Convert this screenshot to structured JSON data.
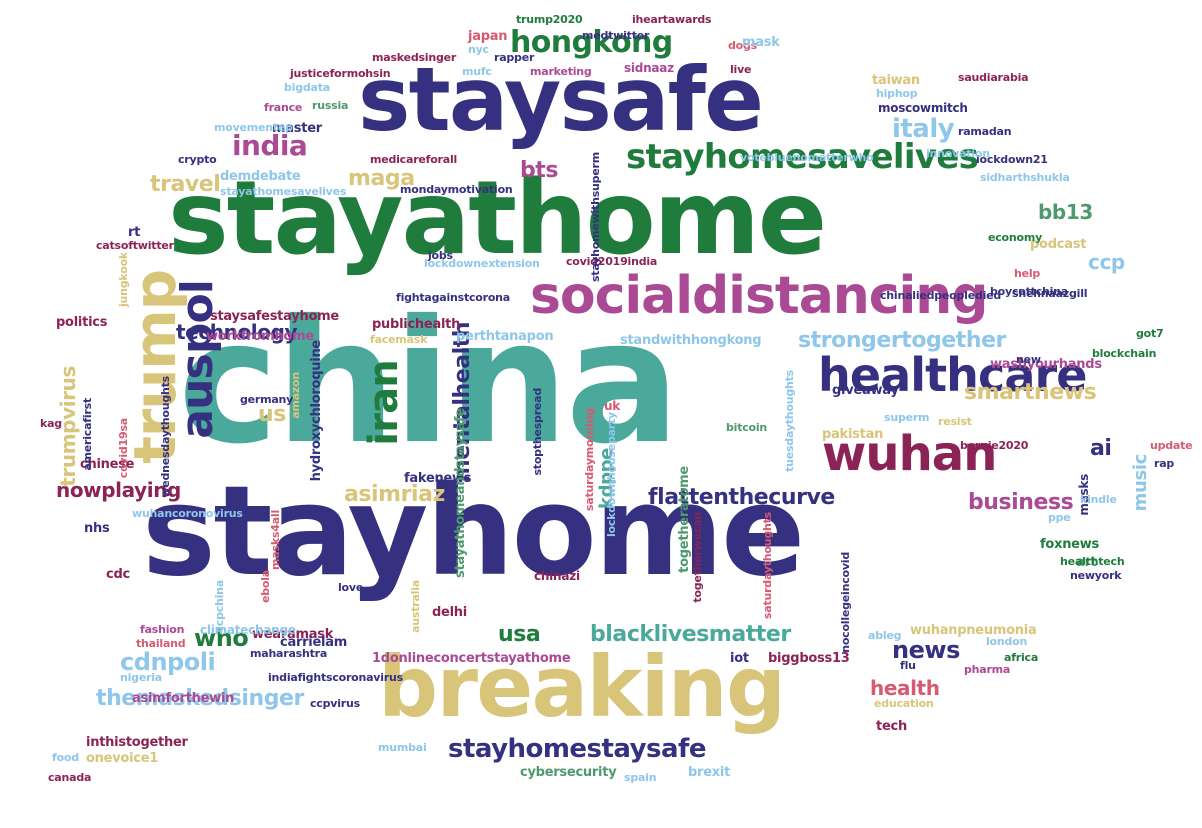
{
  "colors": {
    "navy": "#35307f",
    "green": "#1f7c3d",
    "teal": "#4aa99b",
    "magenta": "#aa4a95",
    "maroon": "#8b2356",
    "tan": "#d8c57a",
    "skyblue": "#8ec7ea",
    "pink": "#d65a72",
    "sage": "#4e9a6e",
    "blue": "#3a6dc6"
  },
  "words": [
    {
      "t": "china",
      "c": "teal"
    },
    {
      "t": "stayhome",
      "c": "navy"
    },
    {
      "t": "stayathome",
      "c": "green"
    },
    {
      "t": "staysafe",
      "c": "navy"
    },
    {
      "t": "breaking",
      "c": "tan"
    },
    {
      "t": "socialdistancing",
      "c": "magenta"
    },
    {
      "t": "healthcare",
      "c": "navy"
    },
    {
      "t": "wuhan",
      "c": "maroon"
    },
    {
      "t": "stayhomesavelives",
      "c": "green"
    },
    {
      "t": "hongkong",
      "c": "green"
    },
    {
      "t": "trump",
      "c": "tan"
    },
    {
      "t": "auspol",
      "c": "navy"
    },
    {
      "t": "iran",
      "c": "green"
    },
    {
      "t": "india",
      "c": "magenta"
    },
    {
      "t": "italy",
      "c": "skyblue"
    },
    {
      "t": "bts",
      "c": "magenta"
    },
    {
      "t": "maga",
      "c": "tan"
    },
    {
      "t": "travel",
      "c": "tan"
    },
    {
      "t": "bb13",
      "c": "sage"
    },
    {
      "t": "ccp",
      "c": "skyblue"
    },
    {
      "t": "technology",
      "c": "navy"
    },
    {
      "t": "strongertogether",
      "c": "skyblue"
    },
    {
      "t": "smartnews",
      "c": "tan"
    },
    {
      "t": "us",
      "c": "tan"
    },
    {
      "t": "ai",
      "c": "navy"
    },
    {
      "t": "nowplaying",
      "c": "maroon"
    },
    {
      "t": "flattenthecurve",
      "c": "navy"
    },
    {
      "t": "business",
      "c": "magenta"
    },
    {
      "t": "asimriaz",
      "c": "tan"
    },
    {
      "t": "mentalhealth",
      "c": "navy"
    },
    {
      "t": "kdppe",
      "c": "teal"
    },
    {
      "t": "who",
      "c": "green"
    },
    {
      "t": "usa",
      "c": "green"
    },
    {
      "t": "blacklivesmatter",
      "c": "teal"
    },
    {
      "t": "news",
      "c": "navy"
    },
    {
      "t": "cdnpoli",
      "c": "skyblue"
    },
    {
      "t": "themaskedsinger",
      "c": "skyblue"
    },
    {
      "t": "health",
      "c": "pink"
    },
    {
      "t": "stayhomestaysafe",
      "c": "navy"
    },
    {
      "t": "trumpvirus",
      "c": "tan"
    },
    {
      "t": "music",
      "c": "skyblue"
    },
    {
      "t": "1donlineconcertstayathome",
      "c": "magenta"
    },
    {
      "t": "workfromhome",
      "c": "magenta"
    },
    {
      "t": "staysafestayhome",
      "c": "maroon"
    },
    {
      "t": "hydroxychloroquine",
      "c": "navy"
    },
    {
      "t": "publichealth",
      "c": "maroon"
    },
    {
      "t": "perthtanapon",
      "c": "skyblue"
    },
    {
      "t": "giveaway",
      "c": "navy"
    },
    {
      "t": "washyourhands",
      "c": "magenta"
    },
    {
      "t": "pakistan",
      "c": "tan"
    },
    {
      "t": "fakenews",
      "c": "navy"
    },
    {
      "t": "politics",
      "c": "maroon"
    },
    {
      "t": "chinese",
      "c": "maroon"
    },
    {
      "t": "nhs",
      "c": "navy"
    },
    {
      "t": "cdc",
      "c": "maroon"
    },
    {
      "t": "wearamask",
      "c": "maroon"
    },
    {
      "t": "carrielam",
      "c": "navy"
    },
    {
      "t": "climatechange",
      "c": "skyblue"
    },
    {
      "t": "biggboss13",
      "c": "maroon"
    },
    {
      "t": "iot",
      "c": "navy"
    },
    {
      "t": "wuhanpneumonia",
      "c": "tan"
    },
    {
      "t": "ableg",
      "c": "skyblue"
    },
    {
      "t": "asimforthewin",
      "c": "magenta"
    },
    {
      "t": "inthistogether",
      "c": "maroon"
    },
    {
      "t": "onevoice1",
      "c": "tan"
    },
    {
      "t": "cybersecurity",
      "c": "sage"
    },
    {
      "t": "brexit",
      "c": "skyblue"
    },
    {
      "t": "tech",
      "c": "maroon"
    },
    {
      "t": "mumbai",
      "c": "skyblue"
    },
    {
      "t": "delhi",
      "c": "maroon"
    },
    {
      "t": "masks",
      "c": "navy"
    },
    {
      "t": "pharma",
      "c": "magenta"
    },
    {
      "t": "london",
      "c": "skyblue"
    },
    {
      "t": "africa",
      "c": "green"
    },
    {
      "t": "foxnews",
      "c": "green"
    },
    {
      "t": "art",
      "c": "sage"
    },
    {
      "t": "newyork",
      "c": "navy"
    },
    {
      "t": "kindle",
      "c": "skyblue"
    },
    {
      "t": "ppe",
      "c": "skyblue"
    },
    {
      "t": "rap",
      "c": "navy"
    },
    {
      "t": "update",
      "c": "pink"
    },
    {
      "t": "bernie2020",
      "c": "maroon"
    },
    {
      "t": "resist",
      "c": "tan"
    },
    {
      "t": "superm",
      "c": "skyblue"
    },
    {
      "t": "bitcoin",
      "c": "sage"
    },
    {
      "t": "blockchain",
      "c": "green"
    },
    {
      "t": "got7",
      "c": "green"
    },
    {
      "t": "new",
      "c": "navy"
    },
    {
      "t": "uk",
      "c": "pink"
    },
    {
      "t": "podcast",
      "c": "tan"
    },
    {
      "t": "economy",
      "c": "green"
    },
    {
      "t": "help",
      "c": "pink"
    },
    {
      "t": "shehnaazgill",
      "c": "navy"
    },
    {
      "t": "chinaliedpeopledied",
      "c": "navy"
    },
    {
      "t": "boycottchina",
      "c": "navy"
    },
    {
      "t": "standwithhongkong",
      "c": "skyblue"
    },
    {
      "t": "covid2019india",
      "c": "maroon"
    },
    {
      "t": "lockdownextension",
      "c": "skyblue"
    },
    {
      "t": "fightagainstcorona",
      "c": "navy"
    },
    {
      "t": "jobs",
      "c": "navy"
    },
    {
      "t": "rt",
      "c": "navy"
    },
    {
      "t": "catsoftwitter",
      "c": "maroon"
    },
    {
      "t": "demdebate",
      "c": "skyblue"
    },
    {
      "t": "stayathomesavelives",
      "c": "skyblue"
    },
    {
      "t": "mondaymotivation",
      "c": "navy"
    },
    {
      "t": "medicareforall",
      "c": "maroon"
    },
    {
      "t": "votebluenomatterwho",
      "c": "skyblue"
    },
    {
      "t": "lockdown21",
      "c": "navy"
    },
    {
      "t": "sidharthshukla",
      "c": "skyblue"
    },
    {
      "t": "innovation",
      "c": "skyblue"
    },
    {
      "t": "ramadan",
      "c": "navy"
    },
    {
      "t": "moscowmitch",
      "c": "navy"
    },
    {
      "t": "hiphop",
      "c": "skyblue"
    },
    {
      "t": "taiwan",
      "c": "tan"
    },
    {
      "t": "saudiarabia",
      "c": "maroon"
    },
    {
      "t": "master",
      "c": "navy"
    },
    {
      "t": "russia",
      "c": "sage"
    },
    {
      "t": "movementep",
      "c": "skyblue"
    },
    {
      "t": "france",
      "c": "magenta"
    },
    {
      "t": "bigdata",
      "c": "skyblue"
    },
    {
      "t": "crypto",
      "c": "navy"
    },
    {
      "t": "justiceformohsin",
      "c": "maroon"
    },
    {
      "t": "maskedsinger",
      "c": "maroon"
    },
    {
      "t": "japan",
      "c": "pink"
    },
    {
      "t": "nyc",
      "c": "skyblue"
    },
    {
      "t": "rapper",
      "c": "navy"
    },
    {
      "t": "mufc",
      "c": "skyblue"
    },
    {
      "t": "marketing",
      "c": "magenta"
    },
    {
      "t": "trump2020",
      "c": "green"
    },
    {
      "t": "iheartawards",
      "c": "maroon"
    },
    {
      "t": "medtwitter",
      "c": "navy"
    },
    {
      "t": "sidnaaz",
      "c": "magenta"
    },
    {
      "t": "dogs",
      "c": "pink"
    },
    {
      "t": "mask",
      "c": "skyblue"
    },
    {
      "t": "live",
      "c": "maroon"
    },
    {
      "t": "germany",
      "c": "navy"
    },
    {
      "t": "amazon",
      "c": "tan"
    },
    {
      "t": "stopthespread",
      "c": "navy"
    },
    {
      "t": "saturdaymorning",
      "c": "pink"
    },
    {
      "t": "lockdownhouseparty",
      "c": "skyblue"
    },
    {
      "t": "tuesdaythoughts",
      "c": "skyblue"
    },
    {
      "t": "stayathomeandstaysafe",
      "c": "sage"
    },
    {
      "t": "togetheratome",
      "c": "sage"
    },
    {
      "t": "chinazi",
      "c": "maroon"
    },
    {
      "t": "covid19sa",
      "c": "pink"
    },
    {
      "t": "americafirst",
      "c": "navy"
    },
    {
      "t": "wednesdaythoughts",
      "c": "navy"
    },
    {
      "t": "kag",
      "c": "maroon"
    },
    {
      "t": "jungkook",
      "c": "tan"
    },
    {
      "t": "wuhancoronovirus",
      "c": "skyblue"
    },
    {
      "t": "masks4all",
      "c": "pink"
    },
    {
      "t": "ebola",
      "c": "pink"
    },
    {
      "t": "australia",
      "c": "tan"
    },
    {
      "t": "ccpchina",
      "c": "skyblue"
    },
    {
      "t": "love",
      "c": "navy"
    },
    {
      "t": "fashion",
      "c": "magenta"
    },
    {
      "t": "thailand",
      "c": "pink"
    },
    {
      "t": "maharashtra",
      "c": "navy"
    },
    {
      "t": "indiafightscoronavirus",
      "c": "navy"
    },
    {
      "t": "nigeria",
      "c": "skyblue"
    },
    {
      "t": "togetherwecan",
      "c": "maroon"
    },
    {
      "t": "saturdaythoughts",
      "c": "pink"
    },
    {
      "t": "nocollegeincovid",
      "c": "navy"
    },
    {
      "t": "healthtech",
      "c": "green"
    },
    {
      "t": "flu",
      "c": "navy"
    },
    {
      "t": "education",
      "c": "tan"
    },
    {
      "t": "ccpvirus",
      "c": "navy"
    },
    {
      "t": "food",
      "c": "skyblue"
    },
    {
      "t": "canada",
      "c": "maroon"
    },
    {
      "t": "spain",
      "c": "skyblue"
    },
    {
      "t": "stayhomewithsuperm",
      "c": "navy"
    },
    {
      "t": "facemask",
      "c": "tan"
    }
  ]
}
